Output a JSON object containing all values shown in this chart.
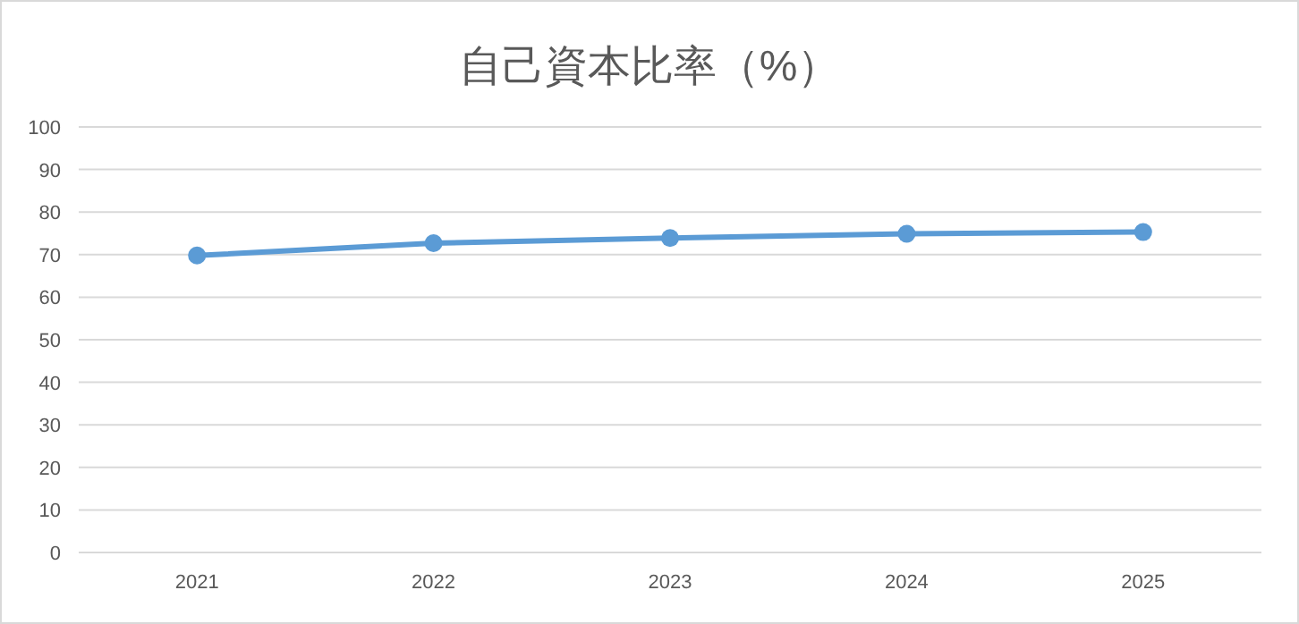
{
  "chart_data": {
    "type": "line",
    "title": "自己資本比率（%）",
    "categories": [
      "2021",
      "2022",
      "2023",
      "2024",
      "2025"
    ],
    "series": [
      {
        "color": "#5b9bd5",
        "values": [
          69.8,
          72.7,
          73.9,
          74.9,
          75.3
        ]
      }
    ],
    "ylim": [
      0,
      100
    ],
    "yticks": [
      0,
      10,
      20,
      30,
      40,
      50,
      60,
      70,
      80,
      90,
      100
    ],
    "grid": "y",
    "marker": "circle",
    "line_style": "solid"
  }
}
